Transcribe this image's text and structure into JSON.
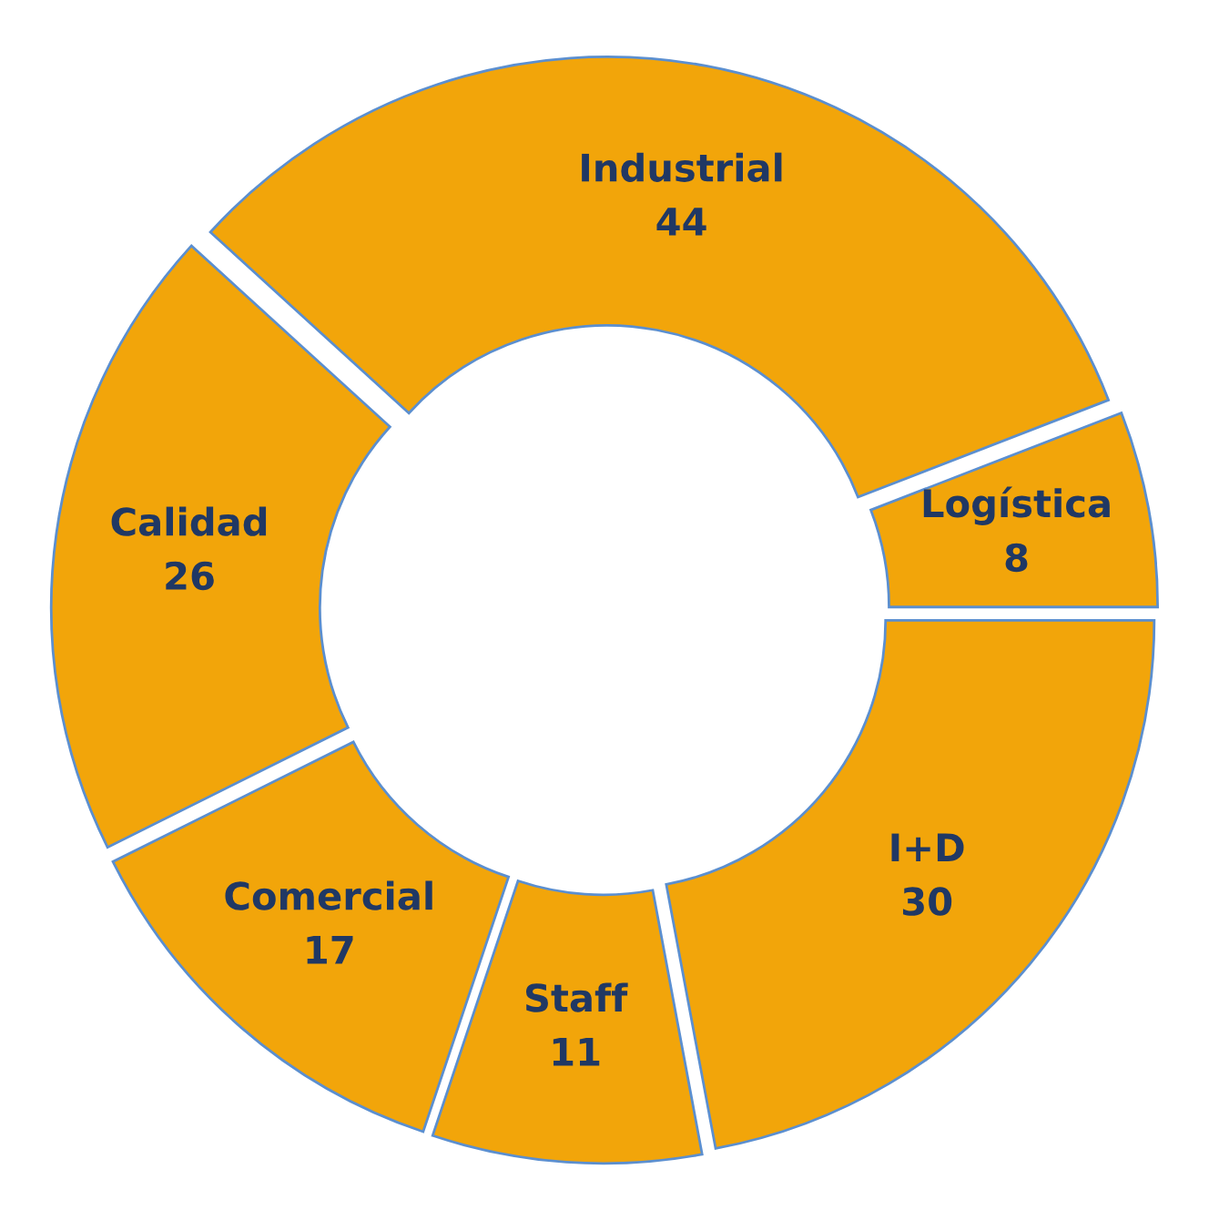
{
  "chart_data": {
    "type": "donut",
    "categories": [
      "Logística",
      "Industrial",
      "Calidad",
      "Comercial",
      "Staff",
      "I+D"
    ],
    "values": [
      8,
      44,
      26,
      17,
      11,
      30
    ],
    "colors": [
      "#f2a50a",
      "#f2a50a",
      "#f2a50a",
      "#f2a50a",
      "#f2a50a",
      "#f2a50a"
    ],
    "data_labels": true,
    "legend": false
  }
}
